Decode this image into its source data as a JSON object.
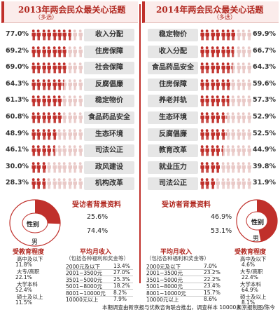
{
  "left": {
    "title": "2013年两会民众最关心话题",
    "tag": "（多选）"
  },
  "right": {
    "title": "2014年两会民众最关心话题",
    "tag": "（多选）"
  },
  "chart_data": [
    {
      "type": "bar",
      "title": "2013年两会民众最关心话题",
      "categories": [
        "收入分配",
        "住房保障",
        "社会保障",
        "反腐倡廉",
        "稳定物价",
        "食品药品安全",
        "生态环境",
        "司法公正",
        "政风建设",
        "机构改革"
      ],
      "values": [
        77.0,
        69.2,
        69.0,
        64.3,
        61.3,
        60.8,
        48.9,
        46.1,
        30.0,
        28.3
      ],
      "labels": [
        "77.0%",
        "69.2%",
        "69.0%",
        "64.3%",
        "61.3%",
        "60.8%",
        "48.9%",
        "46.1%",
        "30.0%",
        "28.3%"
      ]
    },
    {
      "type": "bar",
      "title": "2014年两会民众最关心话题",
      "categories": [
        "稳定物价",
        "收入分配",
        "食品药品安全",
        "住房保障",
        "养老并轨",
        "生态环境",
        "反腐倡廉",
        "教育改革",
        "就业压力",
        "司法公正"
      ],
      "values": [
        69.9,
        66.7,
        64.3,
        59.6,
        57.3,
        52.9,
        52.5,
        44.9,
        39.8,
        31.9
      ],
      "labels": [
        "69.9%",
        "66.7%",
        "64.3%",
        "59.6%",
        "57.3%",
        "52.9%",
        "52.5%",
        "44.9%",
        "39.8%",
        "31.9%"
      ]
    }
  ],
  "bg2013": {
    "title": "受访者背景资料",
    "gender_label": "性别",
    "male": "男",
    "female_pct": "25.6%",
    "male_pct": "74.4%",
    "female_value": 25.6,
    "edu_title": "受教育程度",
    "edu": [
      {
        "label": "高中及以下",
        "pct": "11.8%"
      },
      {
        "label": "大专/高职",
        "pct": "22.1%"
      },
      {
        "label": "大学本科",
        "pct": "52.4%"
      },
      {
        "label": "硕士及以上",
        "pct": "11.5%"
      }
    ],
    "inc_title": "平均月收入",
    "inc_sub": "（包括各种福利和奖金等）",
    "income": [
      {
        "label": "2000元及以下",
        "pct": "13.4%"
      },
      {
        "label": "2001~3500元",
        "pct": "27.0%"
      },
      {
        "label": "3501~5000元",
        "pct": "25.3%"
      },
      {
        "label": "5001~8000元",
        "pct": "18.2%"
      },
      {
        "label": "8001~10000元",
        "pct": "8.2%"
      },
      {
        "label": "10000元以上",
        "pct": "7.9%"
      }
    ]
  },
  "bg2014": {
    "title": "受访者背景资料",
    "gender_label": "性别",
    "male": "男",
    "female_pct": "46.9%",
    "male_pct": "53.1%",
    "female_value": 46.9,
    "edu_title": "受教育程度",
    "edu": [
      {
        "label": "高中及以下",
        "pct": "4.6%"
      },
      {
        "label": "大专/高职",
        "pct": "22.4%"
      },
      {
        "label": "大学本科",
        "pct": "64.9%"
      },
      {
        "label": "硕士及以上",
        "pct": "8.1%"
      }
    ],
    "inc_title": "平均月收入",
    "inc_sub": "（包括各种福利和奖金等）",
    "income": [
      {
        "label": "2000元及以下",
        "pct": "7.0%"
      },
      {
        "label": "2001~3500元",
        "pct": "23.2%"
      },
      {
        "label": "3501~5000元",
        "pct": "22.2%"
      },
      {
        "label": "5001~8000元",
        "pct": "23.4%"
      },
      {
        "label": "8001~10000元",
        "pct": "15.7%"
      },
      {
        "label": "10000元以上",
        "pct": "8.6%"
      }
    ]
  },
  "footer": "本期调查由新京报与优数咨询联合推出，调查样本 10000人",
  "credit": "新京报制图/陈今",
  "colors": {
    "accent": "#c0302b",
    "person_fill": "#c0302b",
    "person_empty": "#e9c9c7",
    "topic_bg": "#e6e6e6",
    "male": "#ffffff"
  }
}
